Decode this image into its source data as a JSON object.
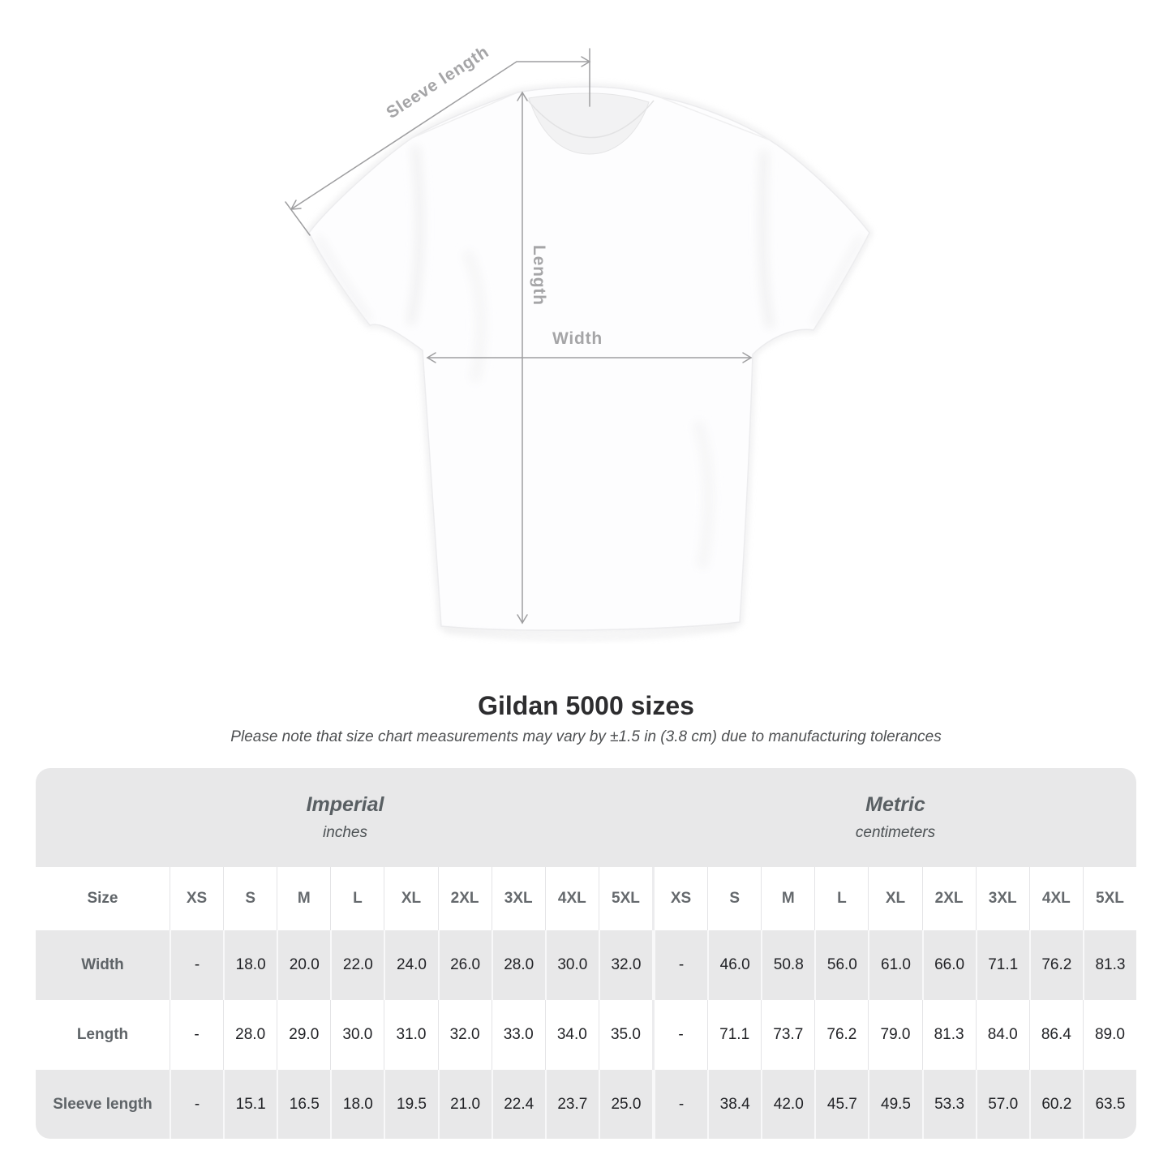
{
  "diagram": {
    "labels": {
      "sleeve_length": "Sleeve length",
      "length": "Length",
      "width": "Width"
    }
  },
  "title": "Gildan 5000 sizes",
  "note": "Please note that size chart measurements may vary by ±1.5 in (3.8 cm) due to manufacturing tolerances",
  "table": {
    "sections": [
      {
        "name": "Imperial",
        "unit": "inches"
      },
      {
        "name": "Metric",
        "unit": "centimeters"
      }
    ],
    "size_header": "Size",
    "sizes": [
      "XS",
      "S",
      "M",
      "L",
      "XL",
      "2XL",
      "3XL",
      "4XL",
      "5XL"
    ],
    "rows": [
      {
        "label": "Width",
        "imperial": [
          "-",
          "18.0",
          "20.0",
          "22.0",
          "24.0",
          "26.0",
          "28.0",
          "30.0",
          "32.0"
        ],
        "metric": [
          "-",
          "46.0",
          "50.8",
          "56.0",
          "61.0",
          "66.0",
          "71.1",
          "76.2",
          "81.3"
        ]
      },
      {
        "label": "Length",
        "imperial": [
          "-",
          "28.0",
          "29.0",
          "30.0",
          "31.0",
          "32.0",
          "33.0",
          "34.0",
          "35.0"
        ],
        "metric": [
          "-",
          "71.1",
          "73.7",
          "76.2",
          "79.0",
          "81.3",
          "84.0",
          "86.4",
          "89.0"
        ]
      },
      {
        "label": "Sleeve length",
        "imperial": [
          "-",
          "15.1",
          "16.5",
          "18.0",
          "19.5",
          "21.0",
          "22.4",
          "23.7",
          "25.0"
        ],
        "metric": [
          "-",
          "38.4",
          "42.0",
          "45.7",
          "49.5",
          "53.3",
          "57.0",
          "60.2",
          "63.5"
        ]
      }
    ]
  },
  "colors": {
    "band_gray": "#e8e8e9",
    "measure_line": "#9e9ea0",
    "measure_label": "#a5a5a7",
    "title_text": "#2d2d2f"
  }
}
